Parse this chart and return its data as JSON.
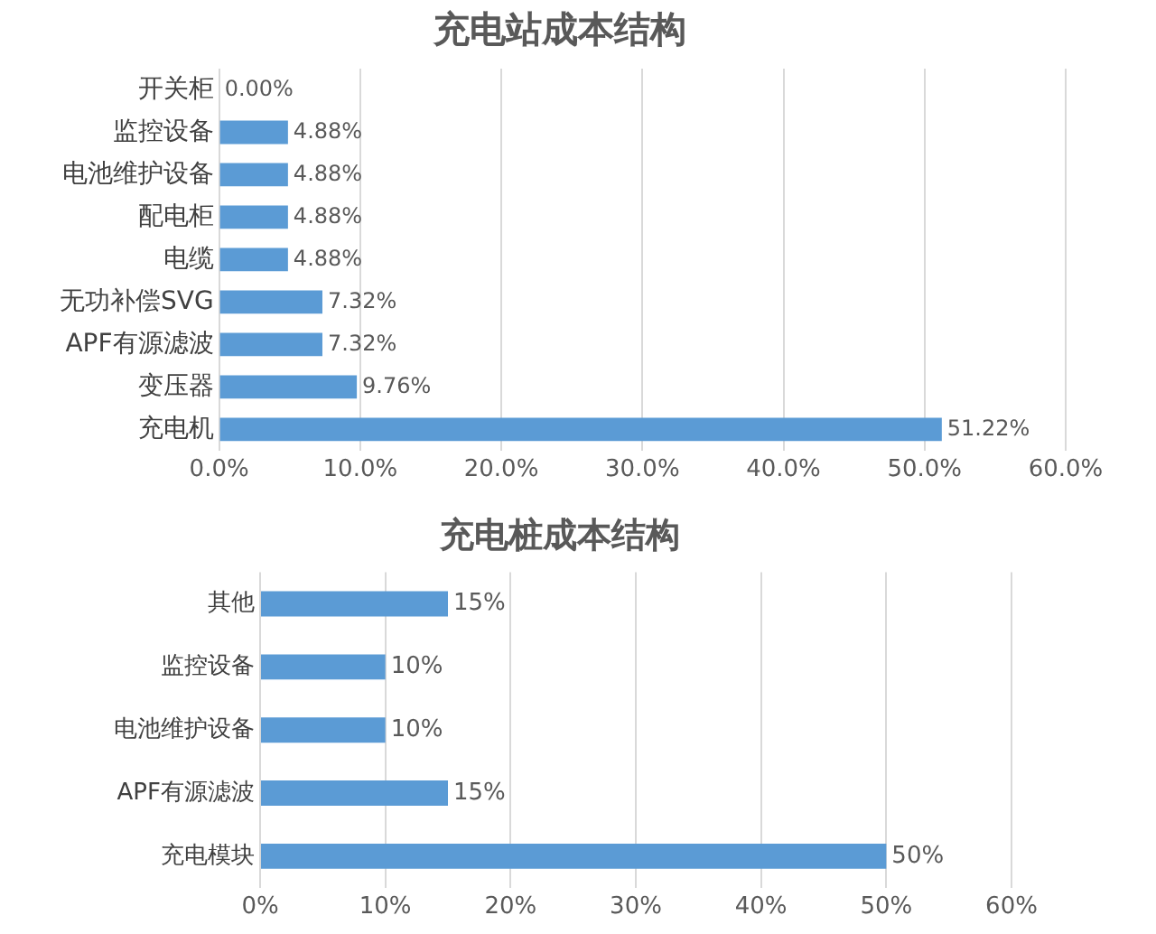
{
  "chart_data": [
    {
      "type": "bar",
      "orientation": "horizontal",
      "title": "充电站成本结构",
      "categories": [
        "开关柜",
        "监控设备",
        "电池维护设备",
        "配电柜",
        "电缆",
        "无功补偿SVG",
        "APF有源滤波",
        "变压器",
        "充电机"
      ],
      "values": [
        0,
        4.88,
        4.88,
        4.88,
        4.88,
        7.32,
        7.32,
        9.76,
        51.22
      ],
      "value_labels": [
        "0.00%",
        "4.88%",
        "4.88%",
        "4.88%",
        "4.88%",
        "7.32%",
        "7.32%",
        "9.76%",
        "51.22%"
      ],
      "color": "#5b9bd5",
      "xlim": [
        0,
        60
      ],
      "xticks": [
        {
          "value": 0,
          "label": "0.0%"
        },
        {
          "value": 10,
          "label": "10.0%"
        },
        {
          "value": 20,
          "label": "20.0%"
        },
        {
          "value": 30,
          "label": "30.0%"
        },
        {
          "value": 40,
          "label": "40.0%"
        },
        {
          "value": 50,
          "label": "50.0%"
        },
        {
          "value": 60,
          "label": "60.0%"
        }
      ],
      "grid": "x",
      "legend": false
    },
    {
      "type": "bar",
      "orientation": "horizontal",
      "title": "充电桩成本结构",
      "categories": [
        "其他",
        "监控设备",
        "电池维护设备",
        "APF有源滤波",
        "充电模块"
      ],
      "values": [
        15,
        10,
        10,
        15,
        50
      ],
      "value_labels": [
        "15%",
        "10%",
        "10%",
        "15%",
        "50%"
      ],
      "color": "#5b9bd5",
      "xlim": [
        0,
        60
      ],
      "xticks": [
        {
          "value": 0,
          "label": "0%"
        },
        {
          "value": 10,
          "label": "10%"
        },
        {
          "value": 20,
          "label": "20%"
        },
        {
          "value": 30,
          "label": "30%"
        },
        {
          "value": 40,
          "label": "40%"
        },
        {
          "value": 50,
          "label": "50%"
        },
        {
          "value": 60,
          "label": "60%"
        }
      ],
      "grid": "x",
      "legend": false
    }
  ]
}
